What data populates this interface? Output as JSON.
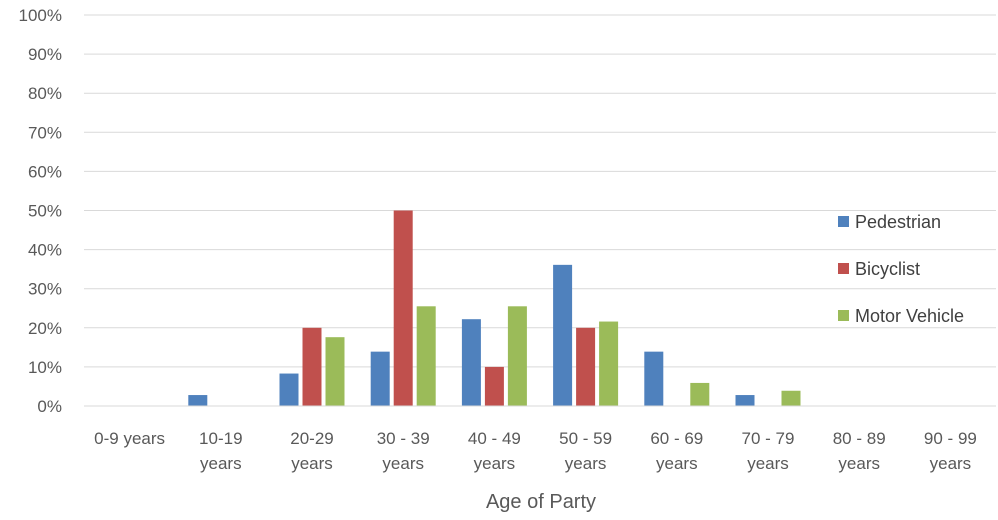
{
  "chart_data": {
    "type": "bar",
    "title": "",
    "xlabel": "Age of Party",
    "ylabel": "",
    "ylim": [
      0,
      100
    ],
    "yticks": [
      "0%",
      "10%",
      "20%",
      "30%",
      "40%",
      "50%",
      "60%",
      "70%",
      "80%",
      "90%",
      "100%"
    ],
    "categories": [
      [
        "0-9 years"
      ],
      [
        "10-19",
        "years"
      ],
      [
        "20-29",
        "years"
      ],
      [
        "30 - 39",
        "years"
      ],
      [
        "40 - 49",
        "years"
      ],
      [
        "50 - 59",
        "years"
      ],
      [
        "60 - 69",
        "years"
      ],
      [
        "70 - 79",
        "years"
      ],
      [
        "80 - 89",
        "years"
      ],
      [
        "90 - 99",
        "years"
      ]
    ],
    "series": [
      {
        "name": "Pedestrian",
        "color": "#4F81BD",
        "values": [
          0,
          2.8,
          8.3,
          13.9,
          22.2,
          36.1,
          13.9,
          2.8,
          0,
          0
        ]
      },
      {
        "name": "Bicyclist",
        "color": "#C0504D",
        "values": [
          0,
          0,
          20,
          50,
          10,
          20,
          0,
          0,
          0,
          0
        ]
      },
      {
        "name": "Motor Vehicle",
        "color": "#9BBB59",
        "values": [
          0,
          0,
          17.6,
          25.5,
          25.5,
          21.6,
          5.9,
          3.9,
          0,
          0
        ]
      }
    ],
    "grid": true,
    "legend_position": "right"
  }
}
